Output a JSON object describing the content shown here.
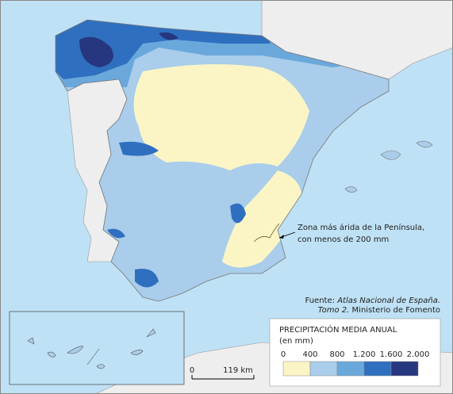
{
  "annotation": {
    "lines": [
      "Zona más árida de la Península,",
      "con menos de 200 mm"
    ]
  },
  "source": {
    "prefix": "Fuente:",
    "work": "Atlas Nacional de España.",
    "volume": "Tomo 2.",
    "publisher": "Ministerio de Fomento"
  },
  "legend": {
    "title": "PRECIPITACIÓN MEDIA ANUAL",
    "unit": "(en mm)",
    "breaks": [
      0,
      400,
      800,
      {
        "value": 1200,
        "label": "1.200"
      },
      {
        "value": 1600,
        "label": "1.600"
      },
      {
        "value": 2000,
        "label": "2.000"
      }
    ],
    "colors": [
      "#fbf5c6",
      "#a9cdea",
      "#6aa8dc",
      "#2f6fbf",
      "#27377f"
    ]
  },
  "scale": {
    "start": 0,
    "end_label": "119 km"
  }
}
